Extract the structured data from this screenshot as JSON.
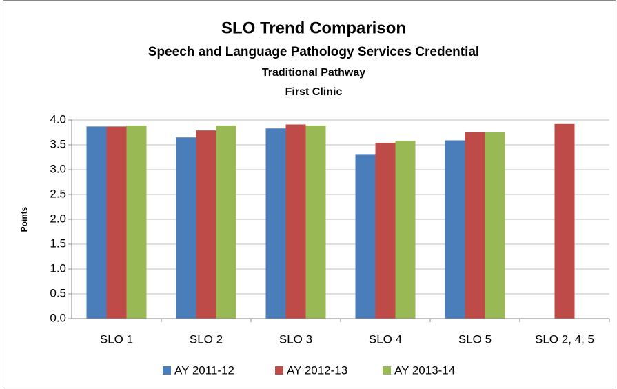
{
  "chart_data": {
    "type": "bar",
    "title": "SLO Trend Comparison",
    "subtitle": [
      "Speech and Language Pathology Services Credential",
      "Traditional Pathway",
      "First Clinic"
    ],
    "y_label": "Points",
    "categories": [
      "SLO 1",
      "SLO 2",
      "SLO 3",
      "SLO 4",
      "SLO 5",
      "SLO 2, 4, 5"
    ],
    "series": [
      {
        "name": "AY 2011-12",
        "color": "#4a7ebb",
        "values": [
          3.87,
          3.65,
          3.83,
          3.3,
          3.59,
          null
        ]
      },
      {
        "name": "AY 2012-13",
        "color": "#be4b48",
        "values": [
          3.87,
          3.79,
          3.91,
          3.54,
          3.75,
          3.92
        ]
      },
      {
        "name": "AY 2013-14",
        "color": "#98b954",
        "values": [
          3.89,
          3.89,
          3.89,
          3.58,
          3.75,
          null
        ]
      }
    ],
    "ylim": [
      0,
      4
    ],
    "yticks": [
      {
        "value": 0,
        "label": "0.0"
      },
      0.5,
      {
        "value": 1,
        "label": "1.0"
      },
      1.5,
      {
        "value": 2,
        "label": "2.0"
      },
      2.5,
      {
        "value": 3,
        "label": "3.0"
      },
      3.5,
      {
        "value": 4,
        "label": "4.0"
      }
    ],
    "grid": true,
    "legend": "bottom"
  }
}
